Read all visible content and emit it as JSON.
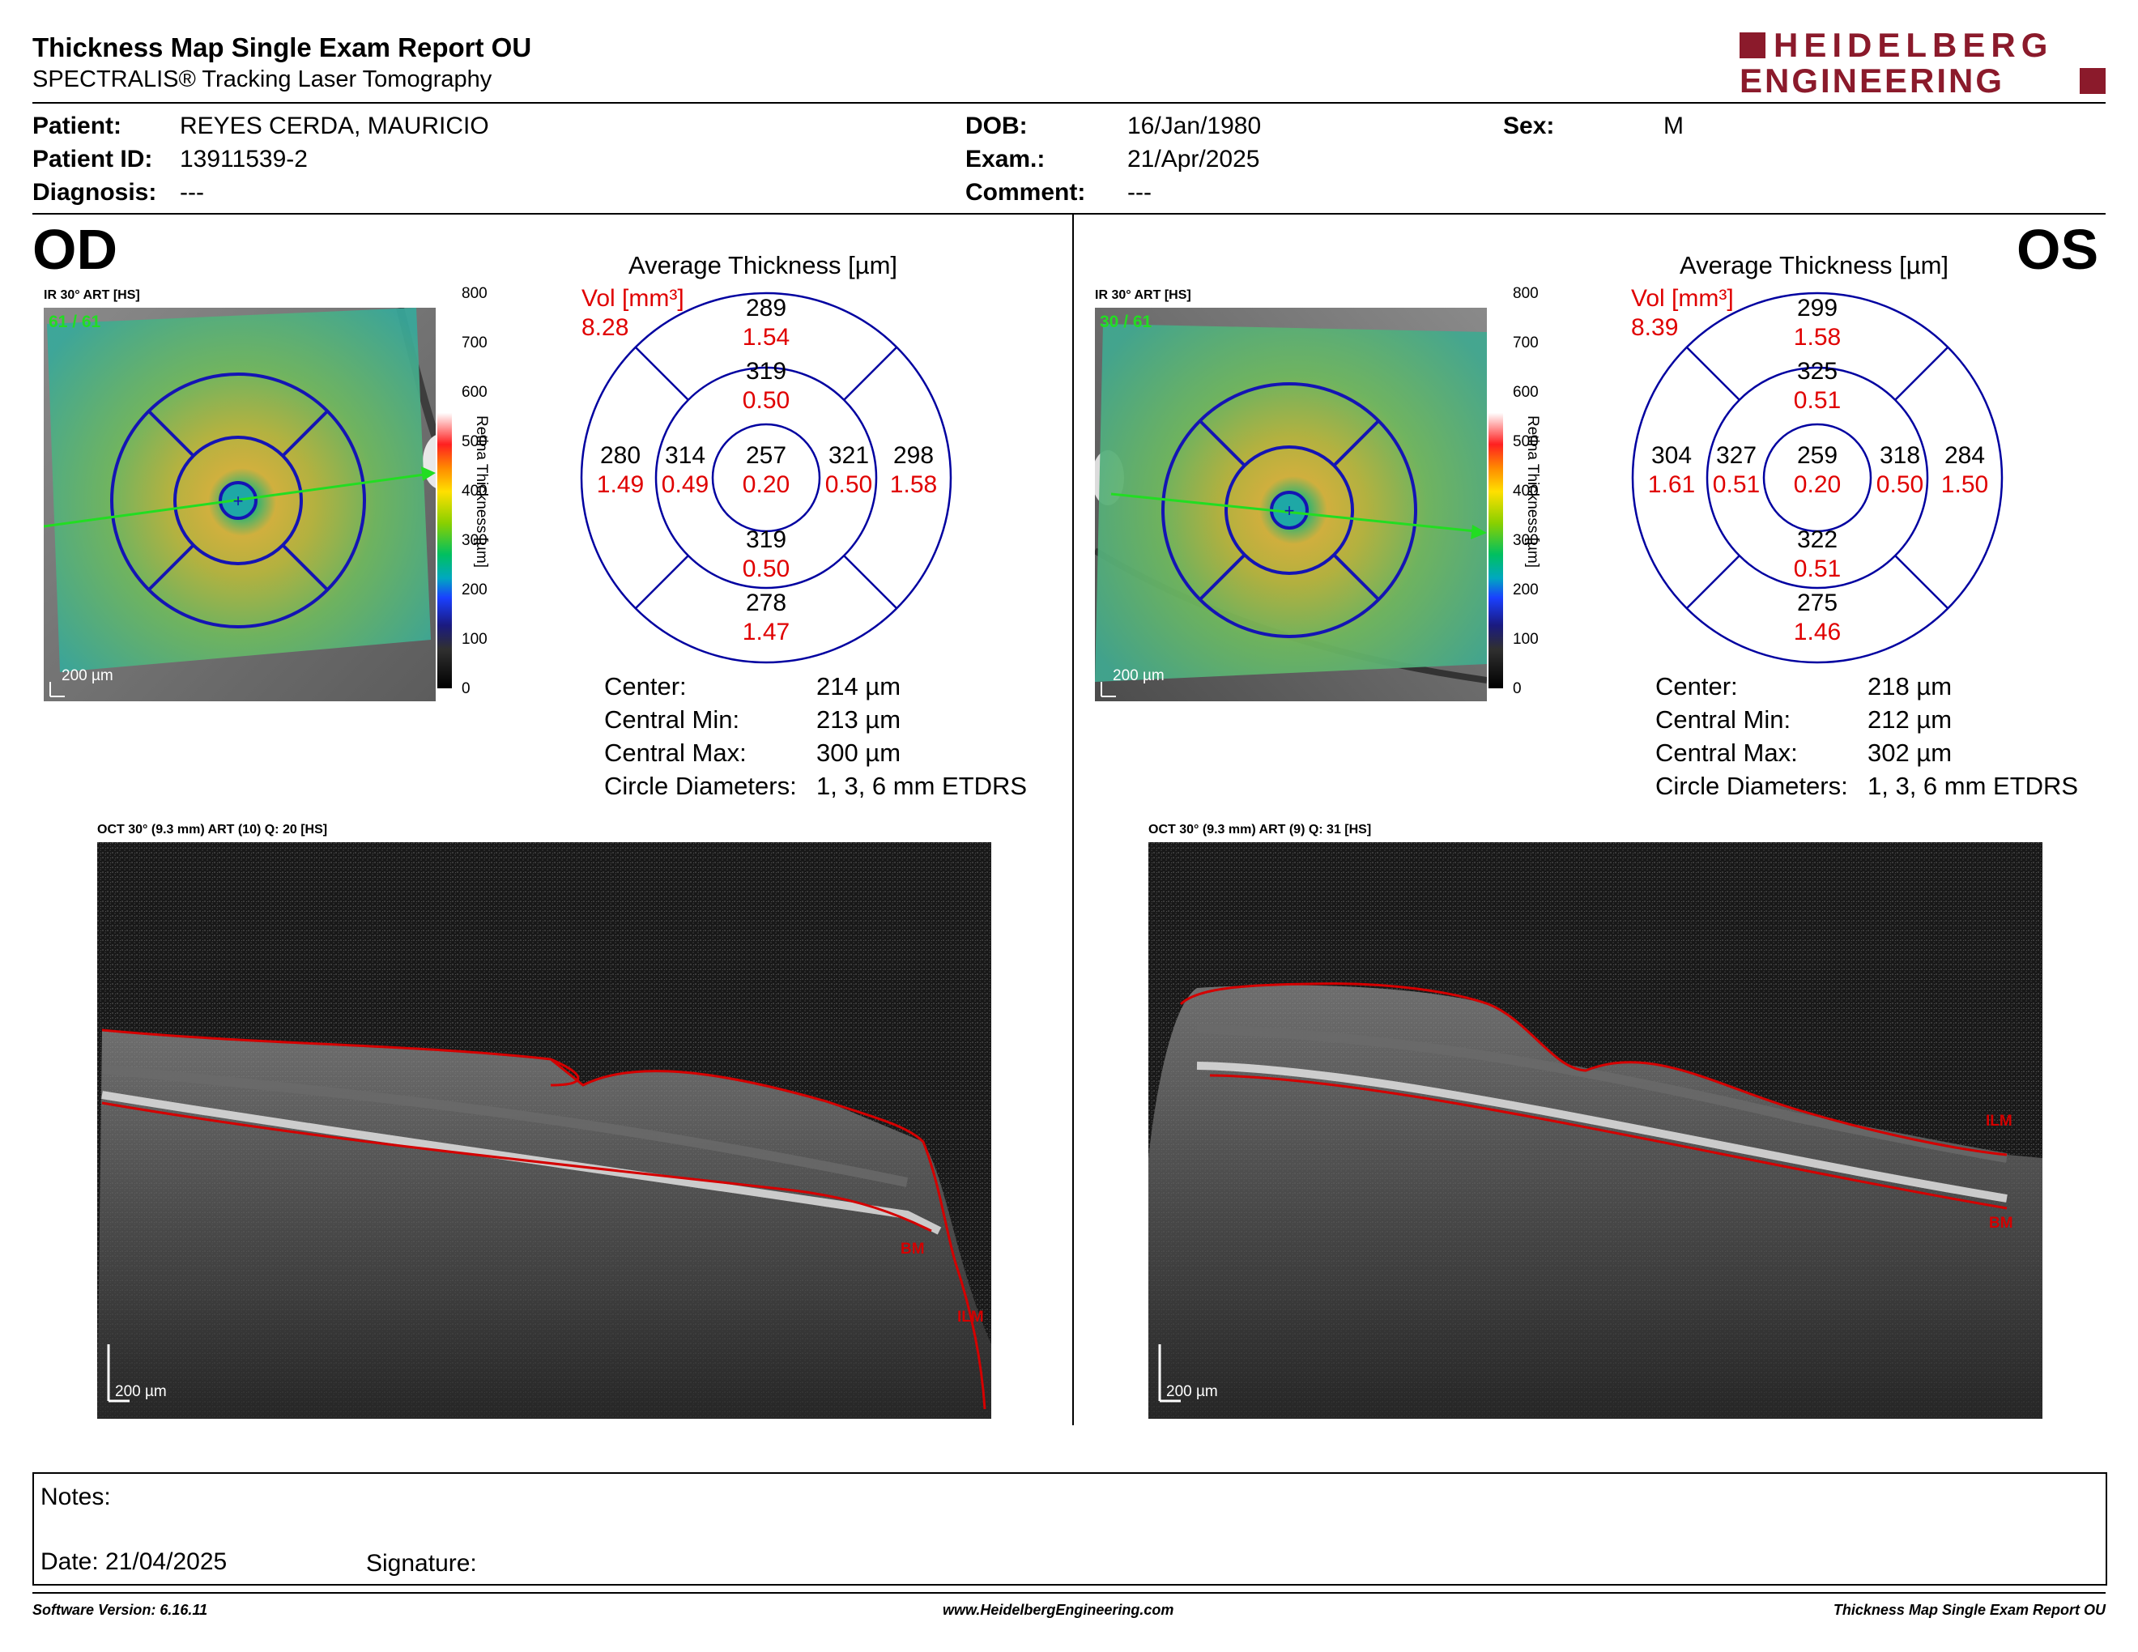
{
  "header": {
    "title": "Thickness Map Single Exam Report OU",
    "subtitle": "SPECTRALIS® Tracking Laser Tomography",
    "logo_line1": "HEIDELBERG",
    "logo_line2": "ENGINEERING",
    "logo_color": "#8b1a2b"
  },
  "patient": {
    "patient_label": "Patient:",
    "patient_value": "REYES CERDA, MAURICIO",
    "patient_id_label": "Patient ID:",
    "patient_id_value": "13911539-2",
    "diagnosis_label": "Diagnosis:",
    "diagnosis_value": "---",
    "dob_label": "DOB:",
    "dob_value": "16/Jan/1980",
    "exam_label": "Exam.:",
    "exam_value": "21/Apr/2025",
    "comment_label": "Comment:",
    "comment_value": "---",
    "sex_label": "Sex:",
    "sex_value": "M"
  },
  "od": {
    "eye": "OD",
    "fundus_label": "IR 30° ART [HS]",
    "frames": "61 / 61",
    "scale": "200 µm",
    "avg_title": "Average Thickness [µm]",
    "vol_label": "Vol [mm³]",
    "total_vol": "8.28",
    "sectors": {
      "outer_sup": {
        "t": "289",
        "v": "1.54"
      },
      "inner_sup": {
        "t": "319",
        "v": "0.50"
      },
      "outer_temp_left": {
        "t": "280",
        "v": "1.49"
      },
      "inner_left": {
        "t": "314",
        "v": "0.49"
      },
      "center": {
        "t": "257",
        "v": "0.20"
      },
      "inner_right": {
        "t": "321",
        "v": "0.50"
      },
      "outer_right": {
        "t": "298",
        "v": "1.58"
      },
      "inner_inf": {
        "t": "319",
        "v": "0.50"
      },
      "outer_inf": {
        "t": "278",
        "v": "1.47"
      }
    },
    "stats": [
      {
        "label": "Center:",
        "value": "214 µm"
      },
      {
        "label": "Central Min:",
        "value": "213 µm"
      },
      {
        "label": "Central Max:",
        "value": "300 µm"
      },
      {
        "label": "Circle Diameters:",
        "value": "1, 3, 6 mm ETDRS"
      }
    ],
    "oct_label": "OCT 30° (9.3 mm) ART (10) Q: 20 [HS]",
    "oct_scale": "200 µm",
    "ilm": "ILM",
    "bm": "BM"
  },
  "os": {
    "eye": "OS",
    "fundus_label": "IR 30° ART [HS]",
    "frames": "30 / 61",
    "scale": "200 µm",
    "avg_title": "Average Thickness [µm]",
    "vol_label": "Vol [mm³]",
    "total_vol": "8.39",
    "sectors": {
      "outer_sup": {
        "t": "299",
        "v": "1.58"
      },
      "inner_sup": {
        "t": "325",
        "v": "0.51"
      },
      "outer_temp_left": {
        "t": "304",
        "v": "1.61"
      },
      "inner_left": {
        "t": "327",
        "v": "0.51"
      },
      "center": {
        "t": "259",
        "v": "0.20"
      },
      "inner_right": {
        "t": "318",
        "v": "0.50"
      },
      "outer_right": {
        "t": "284",
        "v": "1.50"
      },
      "inner_inf": {
        "t": "322",
        "v": "0.51"
      },
      "outer_inf": {
        "t": "275",
        "v": "1.46"
      }
    },
    "stats": [
      {
        "label": "Center:",
        "value": "218 µm"
      },
      {
        "label": "Central Min:",
        "value": "212 µm"
      },
      {
        "label": "Central Max:",
        "value": "302 µm"
      },
      {
        "label": "Circle Diameters:",
        "value": "1, 3, 6 mm ETDRS"
      }
    ],
    "oct_label": "OCT 30° (9.3 mm) ART (9) Q: 31 [HS]",
    "oct_scale": "200 µm",
    "ilm": "ILM",
    "bm": "BM"
  },
  "colorbar": {
    "ticks": [
      "800",
      "700",
      "600",
      "500",
      "400",
      "300",
      "200",
      "100",
      "0"
    ],
    "title": "Retina Thickness [µm]"
  },
  "notes": {
    "notes_label": "Notes:",
    "date_label": "Date: 21/04/2025",
    "signature_label": "Signature:"
  },
  "footer": {
    "left": "Software Version: 6.16.11",
    "center": "www.HeidelbergEngineering.com",
    "right": "Thickness Map Single Exam Report OU"
  },
  "colors": {
    "volume_red": "#e00000",
    "etdrs_blue": "#0000a0",
    "segmentation_red": "#d40000",
    "scan_line_green": "#22dd22"
  }
}
